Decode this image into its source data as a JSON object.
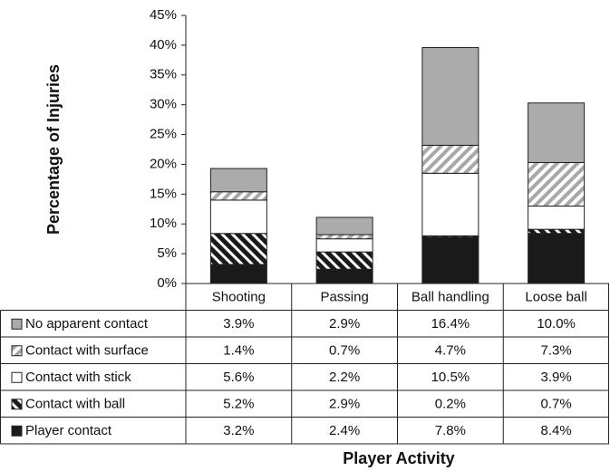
{
  "chart_data": {
    "type": "stacked_bar",
    "y_label": "Percentage of Injuries",
    "x_label": "Player Activity",
    "categories": [
      "Shooting",
      "Passing",
      "Ball handling",
      "Loose ball"
    ],
    "series": [
      {
        "name": "Player contact",
        "color": "#1a1a1a",
        "pattern": "solid",
        "values": [
          3.2,
          2.4,
          7.8,
          8.4
        ],
        "value_labels": [
          "3.2%",
          "2.4%",
          "7.8%",
          "8.4%"
        ]
      },
      {
        "name": "Contact with ball",
        "color": "#1a1a1a",
        "pattern": "hatch-dark",
        "values": [
          5.2,
          2.9,
          0.2,
          0.7
        ],
        "value_labels": [
          "5.2%",
          "2.9%",
          "0.2%",
          "0.7%"
        ]
      },
      {
        "name": "Contact with stick",
        "color": "#ffffff",
        "pattern": "solid",
        "values": [
          5.6,
          2.2,
          10.5,
          3.9
        ],
        "value_labels": [
          "5.6%",
          "2.2%",
          "10.5%",
          "3.9%"
        ]
      },
      {
        "name": "Contact with surface",
        "color": "#a8a8a8",
        "pattern": "hatch-light",
        "values": [
          1.4,
          0.7,
          4.7,
          7.3
        ],
        "value_labels": [
          "1.4%",
          "0.7%",
          "4.7%",
          "7.3%"
        ]
      },
      {
        "name": "No apparent contact",
        "color": "#ababab",
        "pattern": "solid",
        "values": [
          3.9,
          2.9,
          16.4,
          10.0
        ],
        "value_labels": [
          "3.9%",
          "2.9%",
          "16.4%",
          "10.0%"
        ]
      }
    ],
    "ylim": [
      0,
      45
    ],
    "yticks": [
      {
        "value": 0,
        "label": "0%"
      },
      {
        "value": 5,
        "label": "5%"
      },
      {
        "value": 10,
        "label": "10%"
      },
      {
        "value": 15,
        "label": "15%"
      },
      {
        "value": 20,
        "label": "20%"
      },
      {
        "value": 25,
        "label": "25%"
      },
      {
        "value": 30,
        "label": "30%"
      },
      {
        "value": 35,
        "label": "35%"
      },
      {
        "value": 40,
        "label": "40%"
      },
      {
        "value": 45,
        "label": "45%"
      }
    ],
    "grid": false
  }
}
